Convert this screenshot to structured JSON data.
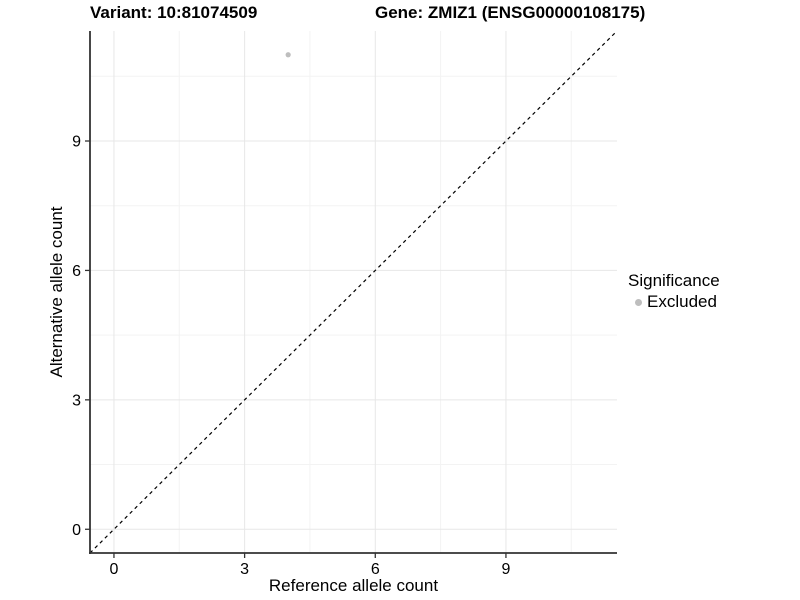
{
  "titles": {
    "left": "Variant: 10:81074509",
    "right": "Gene: ZMIZ1 (ENSG00000108175)"
  },
  "chart_data": {
    "type": "scatter",
    "title": "Variant: 10:81074509   Gene: ZMIZ1 (ENSG00000108175)",
    "xlabel": "Reference allele count",
    "ylabel": "Alternative allele count",
    "xlim": [
      -0.55,
      11.55
    ],
    "ylim": [
      -0.55,
      11.55
    ],
    "xticks": [
      0,
      3,
      6,
      9
    ],
    "yticks": [
      0,
      3,
      6,
      9
    ],
    "minor_ticks_x": [
      1.5,
      4.5,
      7.5,
      10.5
    ],
    "minor_ticks_y": [
      1.5,
      4.5,
      7.5,
      10.5
    ],
    "grid": "major+minor",
    "series": [
      {
        "name": "Excluded",
        "color": "#bebebe",
        "points": [
          {
            "x": 4,
            "y": 11
          }
        ]
      }
    ],
    "reference_line": {
      "kind": "identity-diagonal",
      "style": "dashed",
      "color": "#000000"
    },
    "legend": {
      "title": "Significance",
      "position": "right",
      "items": [
        {
          "label": "Excluded",
          "color": "#bebebe"
        }
      ]
    }
  },
  "colors": {
    "background": "#ffffff",
    "axis_line": "#333333",
    "tick_mark": "#333333",
    "grid_major": "#e7e7e7",
    "grid_minor": "#f3f3f3",
    "tick_label": "#000000",
    "point_excluded": "#bebebe",
    "diagonal_line": "#000000"
  }
}
